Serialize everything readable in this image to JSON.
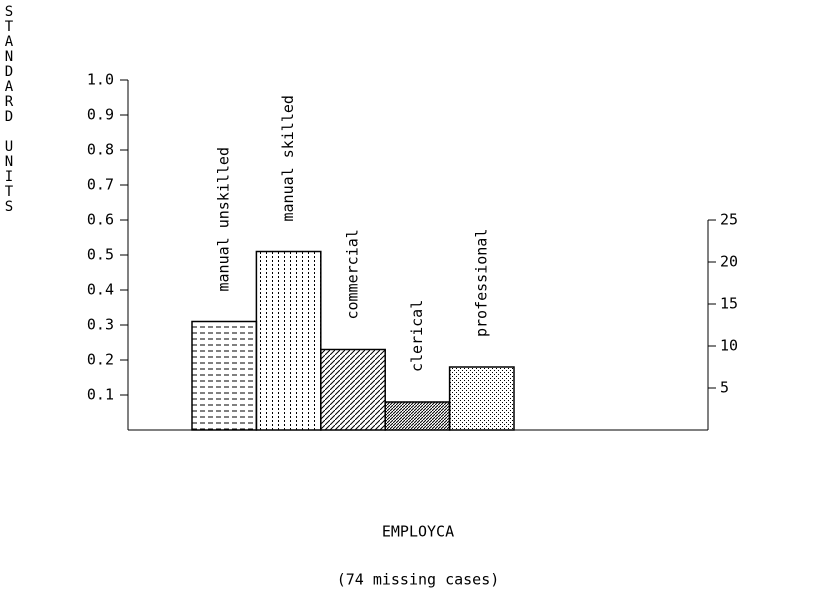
{
  "chart_data": {
    "type": "bar",
    "y_label": "STANDARD UNITS",
    "x_label": "EMPLOYCA",
    "note": "(74 missing cases)",
    "categories": [
      "manual unskilled",
      "manual skilled",
      "commercial",
      "clerical",
      "professional"
    ],
    "values": [
      0.31,
      0.51,
      0.23,
      0.08,
      0.18
    ],
    "patterns": [
      "hdash",
      "vdot",
      "diag",
      "diagdense",
      "stipple"
    ],
    "color": "#000000",
    "ylim": [
      0,
      1.0
    ],
    "yticks": [
      0.1,
      0.2,
      0.3,
      0.4,
      0.5,
      0.6,
      0.7,
      0.8,
      0.9,
      {
        "value": 1.0,
        "label": "1.0"
      }
    ],
    "y2lim": [
      0,
      41.67
    ],
    "y2ticks": [
      5,
      10,
      15,
      20,
      25
    ],
    "grid": false
  }
}
